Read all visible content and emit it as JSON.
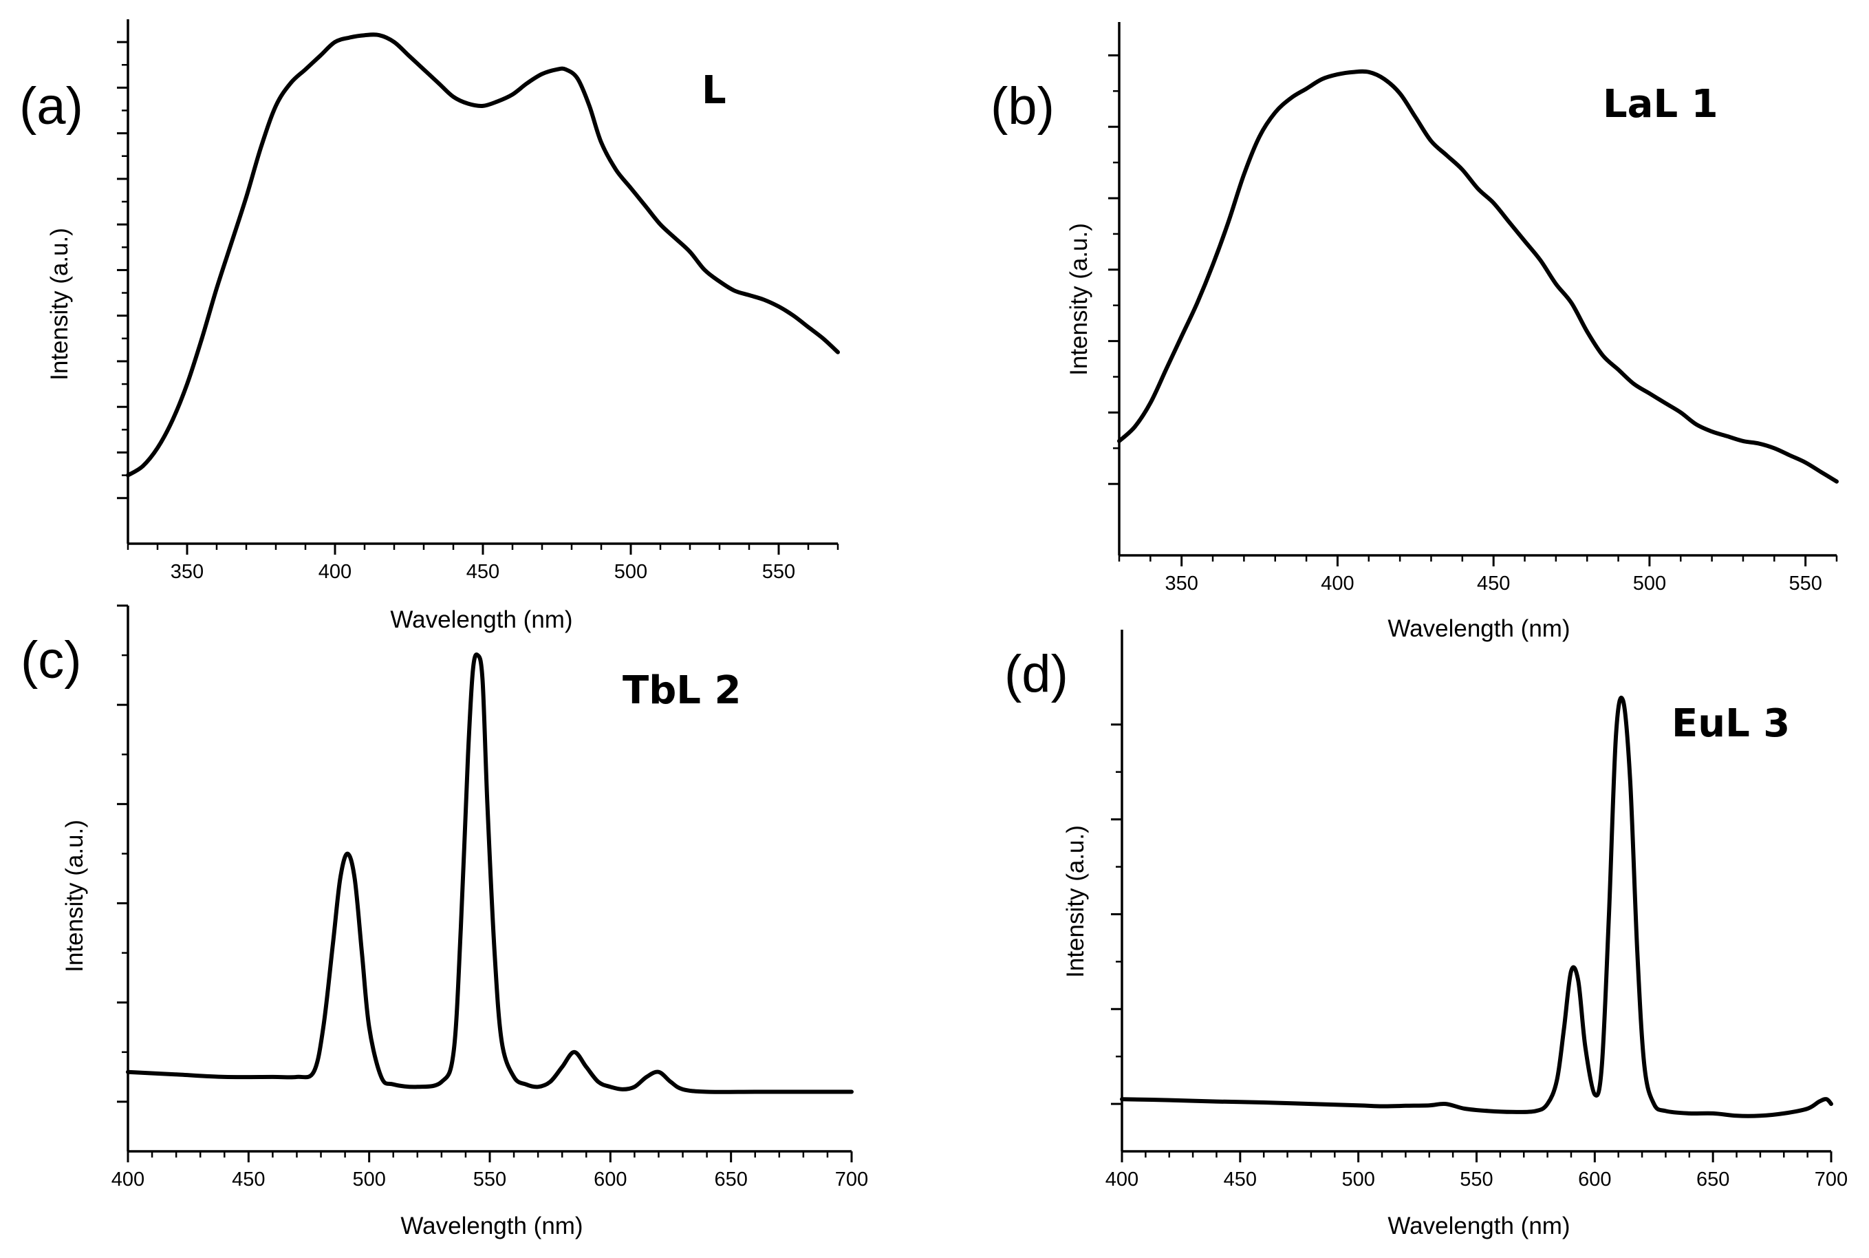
{
  "chart_data": [
    {
      "type": "line",
      "panel_label": "(a)",
      "sample_label": "L",
      "xlabel": "Wavelength (nm)",
      "ylabel": "Intensity (a.u.)",
      "xlim": [
        330,
        570
      ],
      "ylim": [
        0,
        1.15
      ],
      "xticks": [
        350,
        400,
        450,
        500,
        550
      ],
      "xtick_labels": [
        "350",
        "400",
        "450",
        "500",
        "550"
      ],
      "x_minor_step": 10,
      "y_ticks": [
        0.1,
        0.2,
        0.3,
        0.4,
        0.5,
        0.6,
        0.7,
        0.8,
        0.9,
        1.0,
        1.1
      ],
      "y_tick_labels_shown": false,
      "series": [
        {
          "name": "L",
          "x": [
            330,
            335,
            340,
            345,
            350,
            355,
            360,
            365,
            370,
            375,
            380,
            385,
            390,
            395,
            400,
            405,
            410,
            415,
            420,
            425,
            430,
            435,
            440,
            445,
            450,
            455,
            460,
            465,
            470,
            475,
            478,
            482,
            486,
            490,
            495,
            500,
            505,
            510,
            515,
            520,
            525,
            530,
            535,
            540,
            545,
            550,
            555,
            560,
            565,
            570
          ],
          "values": [
            0.15,
            0.17,
            0.21,
            0.27,
            0.35,
            0.45,
            0.56,
            0.66,
            0.76,
            0.87,
            0.96,
            1.01,
            1.04,
            1.07,
            1.1,
            1.11,
            1.115,
            1.115,
            1.1,
            1.07,
            1.04,
            1.01,
            0.98,
            0.965,
            0.96,
            0.97,
            0.985,
            1.01,
            1.03,
            1.04,
            1.04,
            1.02,
            0.96,
            0.88,
            0.82,
            0.78,
            0.74,
            0.7,
            0.67,
            0.64,
            0.6,
            0.575,
            0.555,
            0.545,
            0.535,
            0.52,
            0.5,
            0.475,
            0.45,
            0.42
          ]
        }
      ]
    },
    {
      "type": "line",
      "panel_label": "(b)",
      "sample_label": "LaL 1",
      "xlabel": "Wavelength (nm)",
      "ylabel": "Intensity (a.u.)",
      "xlim": [
        330,
        560
      ],
      "ylim": [
        0,
        1.12
      ],
      "xticks": [
        350,
        400,
        450,
        500,
        550
      ],
      "xtick_labels": [
        "350",
        "400",
        "450",
        "500",
        "550"
      ],
      "x_minor_step": 10,
      "y_ticks": [
        0.15,
        0.3,
        0.45,
        0.6,
        0.75,
        0.9,
        1.05
      ],
      "y_tick_labels_shown": false,
      "series": [
        {
          "name": "LaL 1",
          "x": [
            330,
            335,
            340,
            345,
            350,
            355,
            360,
            365,
            370,
            375,
            380,
            385,
            390,
            395,
            400,
            405,
            410,
            415,
            420,
            425,
            430,
            435,
            440,
            445,
            450,
            455,
            460,
            465,
            470,
            475,
            480,
            485,
            490,
            495,
            500,
            505,
            510,
            515,
            520,
            525,
            530,
            535,
            540,
            545,
            550,
            555,
            560
          ],
          "values": [
            0.24,
            0.27,
            0.32,
            0.39,
            0.46,
            0.53,
            0.61,
            0.7,
            0.8,
            0.88,
            0.93,
            0.96,
            0.98,
            1.0,
            1.01,
            1.015,
            1.015,
            1.0,
            0.97,
            0.92,
            0.87,
            0.84,
            0.81,
            0.77,
            0.74,
            0.7,
            0.66,
            0.62,
            0.57,
            0.53,
            0.47,
            0.42,
            0.39,
            0.36,
            0.34,
            0.32,
            0.3,
            0.275,
            0.26,
            0.25,
            0.24,
            0.235,
            0.225,
            0.21,
            0.195,
            0.175,
            0.155
          ]
        }
      ]
    },
    {
      "type": "line",
      "panel_label": "(c)",
      "sample_label": "TbL 2",
      "xlabel": "Wavelength (nm)",
      "ylabel": "Intensity (a.u.)",
      "xlim": [
        400,
        700
      ],
      "ylim": [
        0,
        1.1
      ],
      "xticks": [
        400,
        450,
        500,
        550,
        600,
        650,
        700
      ],
      "xtick_labels": [
        "400",
        "450",
        "500",
        "550",
        "600",
        "650",
        "700"
      ],
      "x_minor_step": 10,
      "y_ticks": [
        0.1,
        0.3,
        0.5,
        0.7,
        0.9,
        1.1
      ],
      "y_tick_labels_shown": false,
      "series": [
        {
          "name": "TbL 2",
          "x": [
            400,
            420,
            440,
            460,
            470,
            477,
            481,
            485,
            488,
            491,
            494,
            497,
            500,
            505,
            510,
            520,
            530,
            535,
            538,
            541,
            543,
            545,
            547,
            549,
            552,
            555,
            560,
            565,
            570,
            575,
            580,
            585,
            590,
            595,
            600,
            605,
            610,
            615,
            620,
            625,
            630,
            640,
            660,
            680,
            700
          ],
          "values": [
            0.16,
            0.155,
            0.15,
            0.15,
            0.15,
            0.16,
            0.25,
            0.42,
            0.55,
            0.6,
            0.55,
            0.4,
            0.25,
            0.15,
            0.135,
            0.13,
            0.14,
            0.2,
            0.45,
            0.8,
            0.97,
            1.0,
            0.95,
            0.7,
            0.4,
            0.22,
            0.15,
            0.135,
            0.13,
            0.14,
            0.17,
            0.2,
            0.17,
            0.14,
            0.13,
            0.125,
            0.13,
            0.15,
            0.16,
            0.14,
            0.125,
            0.12,
            0.12,
            0.12,
            0.12
          ]
        }
      ]
    },
    {
      "type": "line",
      "panel_label": "(d)",
      "sample_label": "EuL 3",
      "xlabel": "Wavelength (nm)",
      "ylabel": "Intensity (a.u.)",
      "xlim": [
        400,
        700
      ],
      "ylim": [
        0,
        1.1
      ],
      "xticks": [
        400,
        450,
        500,
        550,
        600,
        650,
        700
      ],
      "xtick_labels": [
        "400",
        "450",
        "500",
        "550",
        "600",
        "650",
        "700"
      ],
      "x_minor_step": 10,
      "y_ticks": [
        0.1,
        0.3,
        0.5,
        0.7,
        0.9
      ],
      "y_tick_labels_shown": false,
      "series": [
        {
          "name": "EuL 3",
          "x": [
            400,
            420,
            440,
            460,
            480,
            500,
            510,
            520,
            530,
            537,
            545,
            555,
            565,
            575,
            580,
            584,
            587,
            590,
            593,
            596,
            600,
            603,
            606,
            609,
            612,
            615,
            618,
            621,
            625,
            630,
            640,
            650,
            660,
            670,
            680,
            690,
            695,
            698,
            700
          ],
          "values": [
            0.11,
            0.108,
            0.105,
            0.103,
            0.1,
            0.097,
            0.095,
            0.096,
            0.097,
            0.1,
            0.09,
            0.085,
            0.083,
            0.085,
            0.1,
            0.15,
            0.26,
            0.38,
            0.36,
            0.22,
            0.12,
            0.18,
            0.5,
            0.88,
            0.95,
            0.78,
            0.42,
            0.18,
            0.1,
            0.085,
            0.08,
            0.08,
            0.075,
            0.075,
            0.08,
            0.09,
            0.105,
            0.11,
            0.1
          ]
        }
      ]
    }
  ]
}
